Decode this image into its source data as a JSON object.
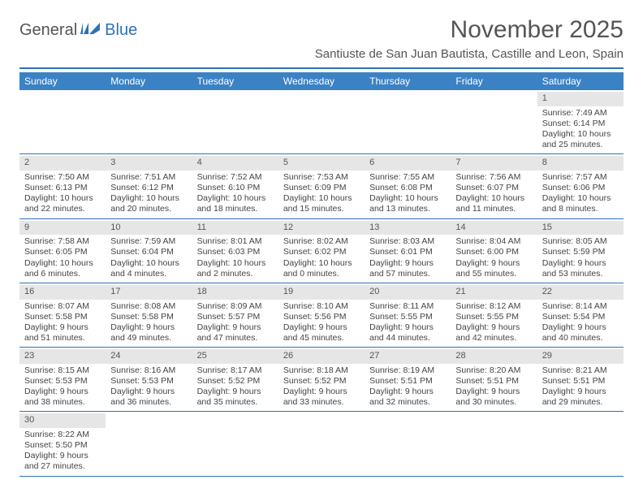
{
  "logo": {
    "part1": "General",
    "part2": "Blue"
  },
  "title": "November 2025",
  "location": "Santiuste de San Juan Bautista, Castille and Leon, Spain",
  "colors": {
    "header_bg": "#3b82c4",
    "accent": "#2c72b8",
    "daynum_bg": "#e6e6e6",
    "text": "#444"
  },
  "day_headers": [
    "Sunday",
    "Monday",
    "Tuesday",
    "Wednesday",
    "Thursday",
    "Friday",
    "Saturday"
  ],
  "weeks": [
    [
      null,
      null,
      null,
      null,
      null,
      null,
      {
        "n": "1",
        "sunrise": "7:49 AM",
        "sunset": "6:14 PM",
        "dl": "10 hours and 25 minutes."
      }
    ],
    [
      {
        "n": "2",
        "sunrise": "7:50 AM",
        "sunset": "6:13 PM",
        "dl": "10 hours and 22 minutes."
      },
      {
        "n": "3",
        "sunrise": "7:51 AM",
        "sunset": "6:12 PM",
        "dl": "10 hours and 20 minutes."
      },
      {
        "n": "4",
        "sunrise": "7:52 AM",
        "sunset": "6:10 PM",
        "dl": "10 hours and 18 minutes."
      },
      {
        "n": "5",
        "sunrise": "7:53 AM",
        "sunset": "6:09 PM",
        "dl": "10 hours and 15 minutes."
      },
      {
        "n": "6",
        "sunrise": "7:55 AM",
        "sunset": "6:08 PM",
        "dl": "10 hours and 13 minutes."
      },
      {
        "n": "7",
        "sunrise": "7:56 AM",
        "sunset": "6:07 PM",
        "dl": "10 hours and 11 minutes."
      },
      {
        "n": "8",
        "sunrise": "7:57 AM",
        "sunset": "6:06 PM",
        "dl": "10 hours and 8 minutes."
      }
    ],
    [
      {
        "n": "9",
        "sunrise": "7:58 AM",
        "sunset": "6:05 PM",
        "dl": "10 hours and 6 minutes."
      },
      {
        "n": "10",
        "sunrise": "7:59 AM",
        "sunset": "6:04 PM",
        "dl": "10 hours and 4 minutes."
      },
      {
        "n": "11",
        "sunrise": "8:01 AM",
        "sunset": "6:03 PM",
        "dl": "10 hours and 2 minutes."
      },
      {
        "n": "12",
        "sunrise": "8:02 AM",
        "sunset": "6:02 PM",
        "dl": "10 hours and 0 minutes."
      },
      {
        "n": "13",
        "sunrise": "8:03 AM",
        "sunset": "6:01 PM",
        "dl": "9 hours and 57 minutes."
      },
      {
        "n": "14",
        "sunrise": "8:04 AM",
        "sunset": "6:00 PM",
        "dl": "9 hours and 55 minutes."
      },
      {
        "n": "15",
        "sunrise": "8:05 AM",
        "sunset": "5:59 PM",
        "dl": "9 hours and 53 minutes."
      }
    ],
    [
      {
        "n": "16",
        "sunrise": "8:07 AM",
        "sunset": "5:58 PM",
        "dl": "9 hours and 51 minutes."
      },
      {
        "n": "17",
        "sunrise": "8:08 AM",
        "sunset": "5:58 PM",
        "dl": "9 hours and 49 minutes."
      },
      {
        "n": "18",
        "sunrise": "8:09 AM",
        "sunset": "5:57 PM",
        "dl": "9 hours and 47 minutes."
      },
      {
        "n": "19",
        "sunrise": "8:10 AM",
        "sunset": "5:56 PM",
        "dl": "9 hours and 45 minutes."
      },
      {
        "n": "20",
        "sunrise": "8:11 AM",
        "sunset": "5:55 PM",
        "dl": "9 hours and 44 minutes."
      },
      {
        "n": "21",
        "sunrise": "8:12 AM",
        "sunset": "5:55 PM",
        "dl": "9 hours and 42 minutes."
      },
      {
        "n": "22",
        "sunrise": "8:14 AM",
        "sunset": "5:54 PM",
        "dl": "9 hours and 40 minutes."
      }
    ],
    [
      {
        "n": "23",
        "sunrise": "8:15 AM",
        "sunset": "5:53 PM",
        "dl": "9 hours and 38 minutes."
      },
      {
        "n": "24",
        "sunrise": "8:16 AM",
        "sunset": "5:53 PM",
        "dl": "9 hours and 36 minutes."
      },
      {
        "n": "25",
        "sunrise": "8:17 AM",
        "sunset": "5:52 PM",
        "dl": "9 hours and 35 minutes."
      },
      {
        "n": "26",
        "sunrise": "8:18 AM",
        "sunset": "5:52 PM",
        "dl": "9 hours and 33 minutes."
      },
      {
        "n": "27",
        "sunrise": "8:19 AM",
        "sunset": "5:51 PM",
        "dl": "9 hours and 32 minutes."
      },
      {
        "n": "28",
        "sunrise": "8:20 AM",
        "sunset": "5:51 PM",
        "dl": "9 hours and 30 minutes."
      },
      {
        "n": "29",
        "sunrise": "8:21 AM",
        "sunset": "5:51 PM",
        "dl": "9 hours and 29 minutes."
      }
    ],
    [
      {
        "n": "30",
        "sunrise": "8:22 AM",
        "sunset": "5:50 PM",
        "dl": "9 hours and 27 minutes."
      },
      null,
      null,
      null,
      null,
      null,
      null
    ]
  ],
  "labels": {
    "sunrise": "Sunrise:",
    "sunset": "Sunset:",
    "daylight": "Daylight:"
  }
}
